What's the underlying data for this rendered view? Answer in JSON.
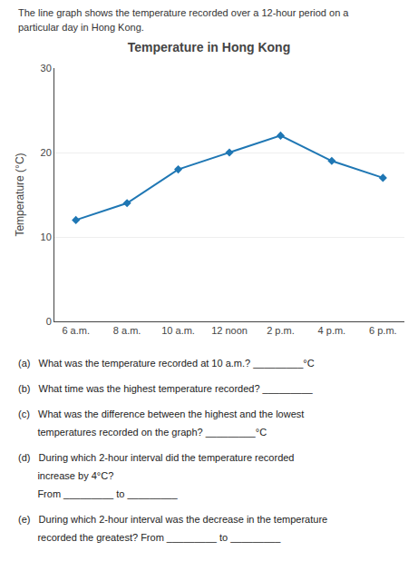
{
  "chart_data": {
    "type": "line",
    "title": "Temperature in Hong Kong",
    "y_label": "Temperature (°C)",
    "categories": [
      "6 a.m.",
      "8 a.m.",
      "10 a.m.",
      "12 noon",
      "2 p.m.",
      "4 p.m.",
      "6 p.m."
    ],
    "values": [
      12,
      14,
      18,
      20,
      22,
      19,
      17
    ],
    "ylim": [
      0,
      30
    ],
    "yticks": [
      0,
      10,
      20,
      30
    ],
    "grid": true,
    "marker": "diamond",
    "annotations": [
      "The line graph shows the temperature recorded over a 12-hour period on a",
      "particular day in Hong Kong.",
      "(a)   What was the temperature recorded at 10 a.m.? _________°C",
      "(b)   What time was the highest temperature recorded? _________",
      "(c)   What was the difference between the highest and the lowest",
      "       temperatures recorded on the graph? _________°C",
      "(d)   During which 2-hour interval did the temperature recorded",
      "       increase by 4°C?",
      "       From _________ to _________",
      "(e)   During which 2-hour interval was the decrease in the temperature",
      "       recorded the greatest? From _________ to _________"
    ]
  }
}
